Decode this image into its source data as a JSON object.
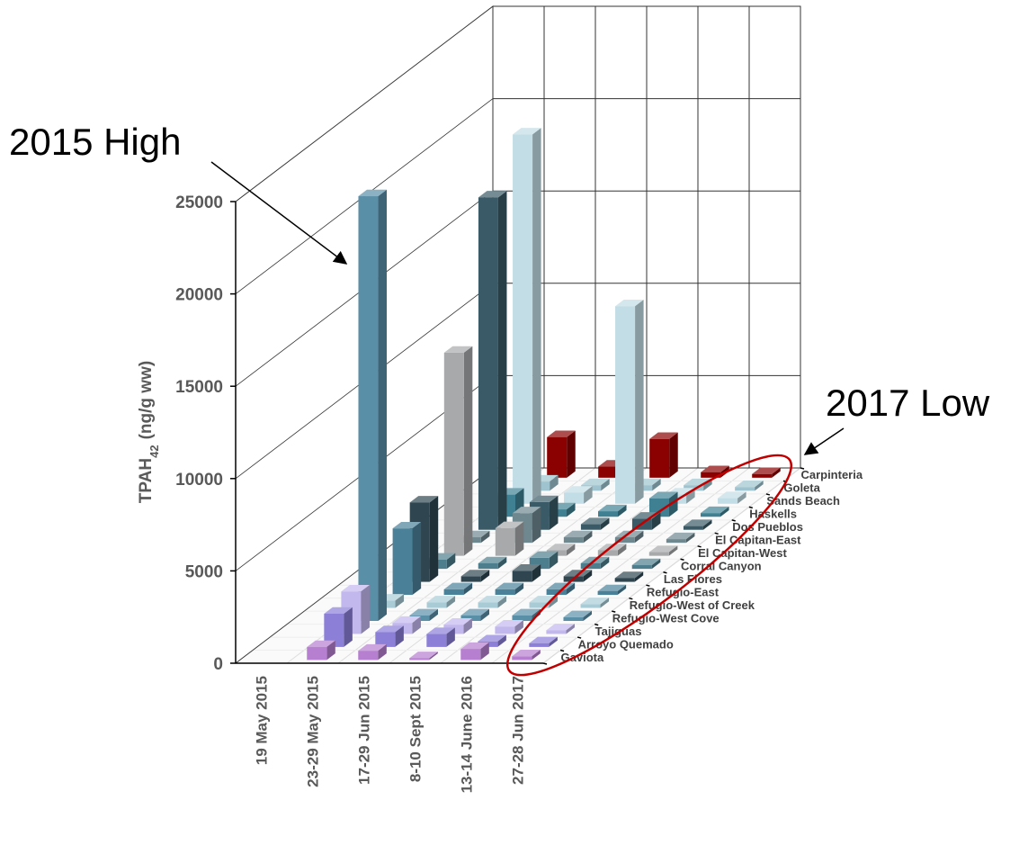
{
  "chart_data": {
    "type": "bar3d",
    "y_label": {
      "main": "TPAH",
      "sub": "42",
      "unit": "(ng/g ww)"
    },
    "annotations": [
      "2015 High",
      "2017 Low"
    ],
    "categories": [
      "19 May 2015",
      "23-29 May 2015",
      "17-29 Jun 2015",
      "8-10 Sept 2015",
      "13-14 June 2016",
      "27-28 Jun 2017"
    ],
    "ylim": [
      0,
      25000
    ],
    "yticks": [
      0,
      5000,
      10000,
      15000,
      20000,
      25000
    ],
    "grid": true,
    "series": [
      {
        "name": "Gaviota",
        "color": "#b77fd0",
        "values": [
          null,
          700,
          500,
          100,
          600,
          200
        ]
      },
      {
        "name": "Arroyo Quemado",
        "color": "#8b7fd8",
        "values": [
          null,
          1800,
          800,
          700,
          300,
          200
        ]
      },
      {
        "name": "Tajiguas",
        "color": "#c3b8ee",
        "values": [
          null,
          2300,
          600,
          500,
          400,
          200
        ]
      },
      {
        "name": "Refugio-West Cove",
        "color": "#5a8fa8",
        "values": [
          null,
          23000,
          300,
          300,
          300,
          200
        ]
      },
      {
        "name": "Refugio-West of Creek",
        "color": "#a9cbd6",
        "values": [
          null,
          400,
          300,
          300,
          300,
          200
        ]
      },
      {
        "name": "Refugio-East",
        "color": "#4a8199",
        "values": [
          null,
          3600,
          300,
          300,
          300,
          200
        ]
      },
      {
        "name": "Las Flores",
        "color": "#2f4651",
        "values": [
          null,
          4300,
          300,
          600,
          300,
          200
        ]
      },
      {
        "name": "Corral Canyon",
        "color": "#4d7e8e",
        "values": [
          null,
          500,
          300,
          600,
          300,
          200
        ]
      },
      {
        "name": "El Capitan-West",
        "color": "#a7a9aa",
        "values": [
          null,
          11000,
          1500,
          300,
          300,
          200
        ]
      },
      {
        "name": "El Capitan-East",
        "color": "#6f8890",
        "values": [
          null,
          300,
          1600,
          300,
          300,
          200
        ]
      },
      {
        "name": "Dos Pueblos",
        "color": "#3a5a67",
        "values": [
          null,
          18000,
          1500,
          300,
          600,
          200
        ]
      },
      {
        "name": "Haskells",
        "color": "#3f8193",
        "values": [
          null,
          1200,
          400,
          300,
          1000,
          200
        ]
      },
      {
        "name": "Sands Beach",
        "color": "#c2dde5",
        "values": [
          null,
          20000,
          600,
          10700,
          500,
          300
        ]
      },
      {
        "name": "Goleta",
        "color": "#9fc4d0",
        "values": [
          null,
          500,
          300,
          300,
          300,
          200
        ]
      },
      {
        "name": "Carpinteria",
        "color": "#8b0000",
        "values": [
          null,
          2200,
          600,
          2100,
          300,
          200
        ]
      }
    ]
  }
}
